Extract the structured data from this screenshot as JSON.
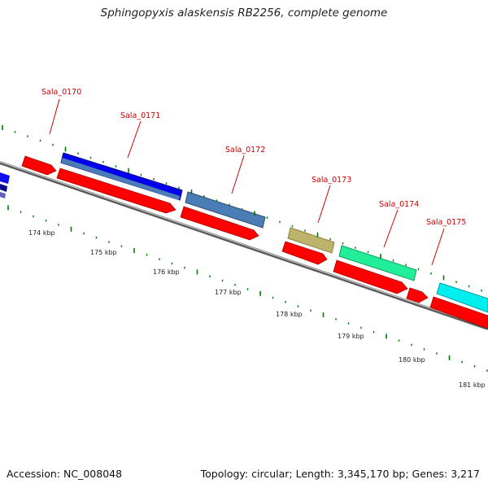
{
  "title": "Sphingopyxis alaskensis RB2256, complete genome",
  "accession_text": "Accession: NC_008048",
  "topology_text": "Topology: circular; Length: 3,345,170 bp; Genes: 3,217",
  "colors": {
    "backbone": "#808080",
    "cds": "#ff0000",
    "gene_label": "#cc0000",
    "tick": "#007700",
    "label_line": "#cc0000"
  },
  "gene_labels": [
    "Sala_0170",
    "Sala_0171",
    "Sala_0172",
    "Sala_0173",
    "Sala_0174",
    "Sala_0175"
  ],
  "ruler_labels": [
    "174 kbp",
    "175 kbp",
    "176 kbp",
    "177 kbp",
    "178 kbp",
    "179 kbp",
    "180 kbp",
    "181 kbp"
  ],
  "features": [
    {
      "name": "Sala_0170",
      "ring": "cds",
      "color": "#ff0000"
    },
    {
      "name": "Sala_0171",
      "ring": "cds",
      "color": "#ff0000"
    },
    {
      "name": "Sala_0172",
      "ring": "cds",
      "color": "#ff0000"
    },
    {
      "name": "Sala_0173",
      "ring": "cds",
      "color": "#ff0000"
    },
    {
      "name": "Sala_0174",
      "ring": "cds",
      "color": "#ff0000"
    },
    {
      "name": "Sala_0175",
      "ring": "cds",
      "color": "#ff0000"
    },
    {
      "name": "Sala_0171",
      "ring": "cog",
      "color": "#0000ee"
    },
    {
      "name": "Sala_0171",
      "ring": "cog",
      "color": "#4a7db5"
    },
    {
      "name": "Sala_0172",
      "ring": "cog",
      "color": "#4a7db5"
    },
    {
      "name": "Sala_0173",
      "ring": "cog",
      "color": "#bdb36b"
    },
    {
      "name": "Sala_0174",
      "ring": "cog",
      "color": "#22ee99"
    },
    {
      "name": "Sala_0175",
      "ring": "cog",
      "color": "#00eeee"
    }
  ]
}
